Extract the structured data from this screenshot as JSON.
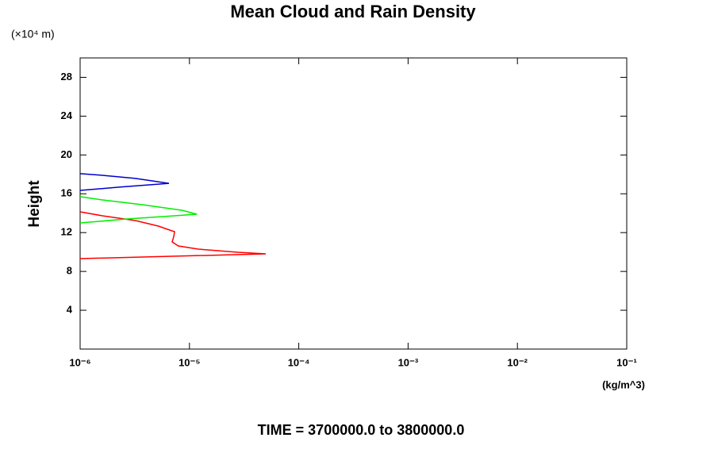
{
  "chart_data": {
    "type": "line",
    "title": "Mean Cloud and Rain Density",
    "y_unit": "(×10⁴ m)",
    "y_label": "Height",
    "x_unit": "(kg/m^3)",
    "footer": "TIME = 3700000.0 to 3800000.0",
    "xscale": "log",
    "xlim": [
      1e-06,
      0.1
    ],
    "xticks": [
      {
        "value": 1e-06,
        "label": "10⁻⁶"
      },
      {
        "value": 1e-05,
        "label": "10⁻⁵"
      },
      {
        "value": 0.0001,
        "label": "10⁻⁴"
      },
      {
        "value": 0.001,
        "label": "10⁻³"
      },
      {
        "value": 0.01,
        "label": "10⁻²"
      },
      {
        "value": 0.1,
        "label": "10⁻¹"
      }
    ],
    "ylim": [
      0,
      30
    ],
    "yticks": [
      4,
      8,
      12,
      16,
      20,
      24,
      28
    ],
    "series": [
      {
        "color": "#ff0000",
        "x": [
          1e-06,
          4.99e-05,
          2.78e-05,
          1.2e-05,
          7.9e-06,
          6.95e-06,
          7.2e-06,
          7.3e-06,
          6.6e-06,
          5.2e-06,
          3.2e-06,
          1.6e-06,
          1e-06
        ],
        "values": [
          9.32,
          9.81,
          9.97,
          10.3,
          10.63,
          11.04,
          11.61,
          12.1,
          12.26,
          12.67,
          13.24,
          13.73,
          14.14
        ]
      },
      {
        "color": "#00ee00",
        "x": [
          1e-06,
          2.7e-06,
          7.3e-06,
          1.17e-05,
          8.6e-06,
          3.7e-06,
          1.6e-06,
          1e-06
        ],
        "values": [
          13.0,
          13.41,
          13.73,
          13.9,
          14.3,
          14.88,
          15.37,
          15.7
        ]
      },
      {
        "color": "#0000cc",
        "x": [
          1e-06,
          2.27e-06,
          6.5e-06,
          3.2e-06,
          1.6e-06,
          1e-06
        ],
        "values": [
          16.35,
          16.68,
          17.08,
          17.58,
          17.9,
          18.07
        ]
      }
    ]
  }
}
